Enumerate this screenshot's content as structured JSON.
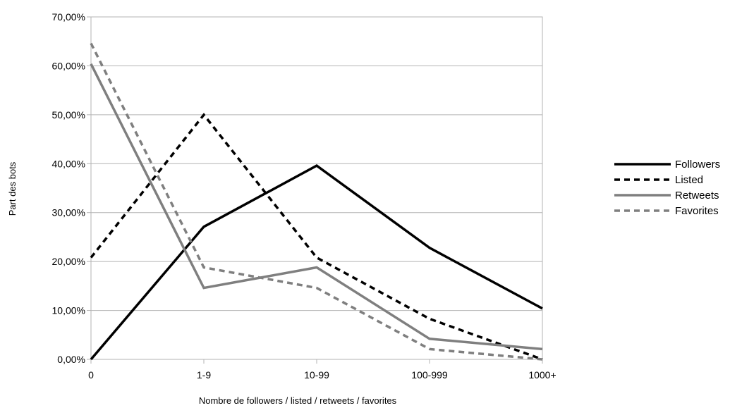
{
  "chart_data": {
    "type": "line",
    "categories": [
      "0",
      "1-9",
      "10-99",
      "100-999",
      "1000+"
    ],
    "xlabel": "Nombre de followers / listed / retweets / favorites",
    "ylabel": "Part des bots",
    "ylim": [
      0,
      0.7
    ],
    "yticks": [
      0,
      0.1,
      0.2,
      0.3,
      0.4,
      0.5,
      0.6,
      0.7
    ],
    "ytick_labels": [
      "0,00%",
      "10,00%",
      "20,00%",
      "30,00%",
      "40,00%",
      "50,00%",
      "60,00%",
      "70,00%"
    ],
    "grid": "horizontal",
    "legend_position": "right",
    "series": [
      {
        "name": "Followers",
        "values": [
          0.0,
          0.271,
          0.396,
          0.228,
          0.104
        ],
        "color": "#000000",
        "dash": "solid"
      },
      {
        "name": "Listed",
        "values": [
          0.208,
          0.5,
          0.208,
          0.083,
          0.0
        ],
        "color": "#000000",
        "dash": "dashed"
      },
      {
        "name": "Retweets",
        "values": [
          0.604,
          0.146,
          0.188,
          0.042,
          0.021
        ],
        "color": "#7f7f7f",
        "dash": "solid"
      },
      {
        "name": "Favorites",
        "values": [
          0.646,
          0.188,
          0.146,
          0.021,
          0.0
        ],
        "color": "#7f7f7f",
        "dash": "dashed"
      }
    ]
  }
}
